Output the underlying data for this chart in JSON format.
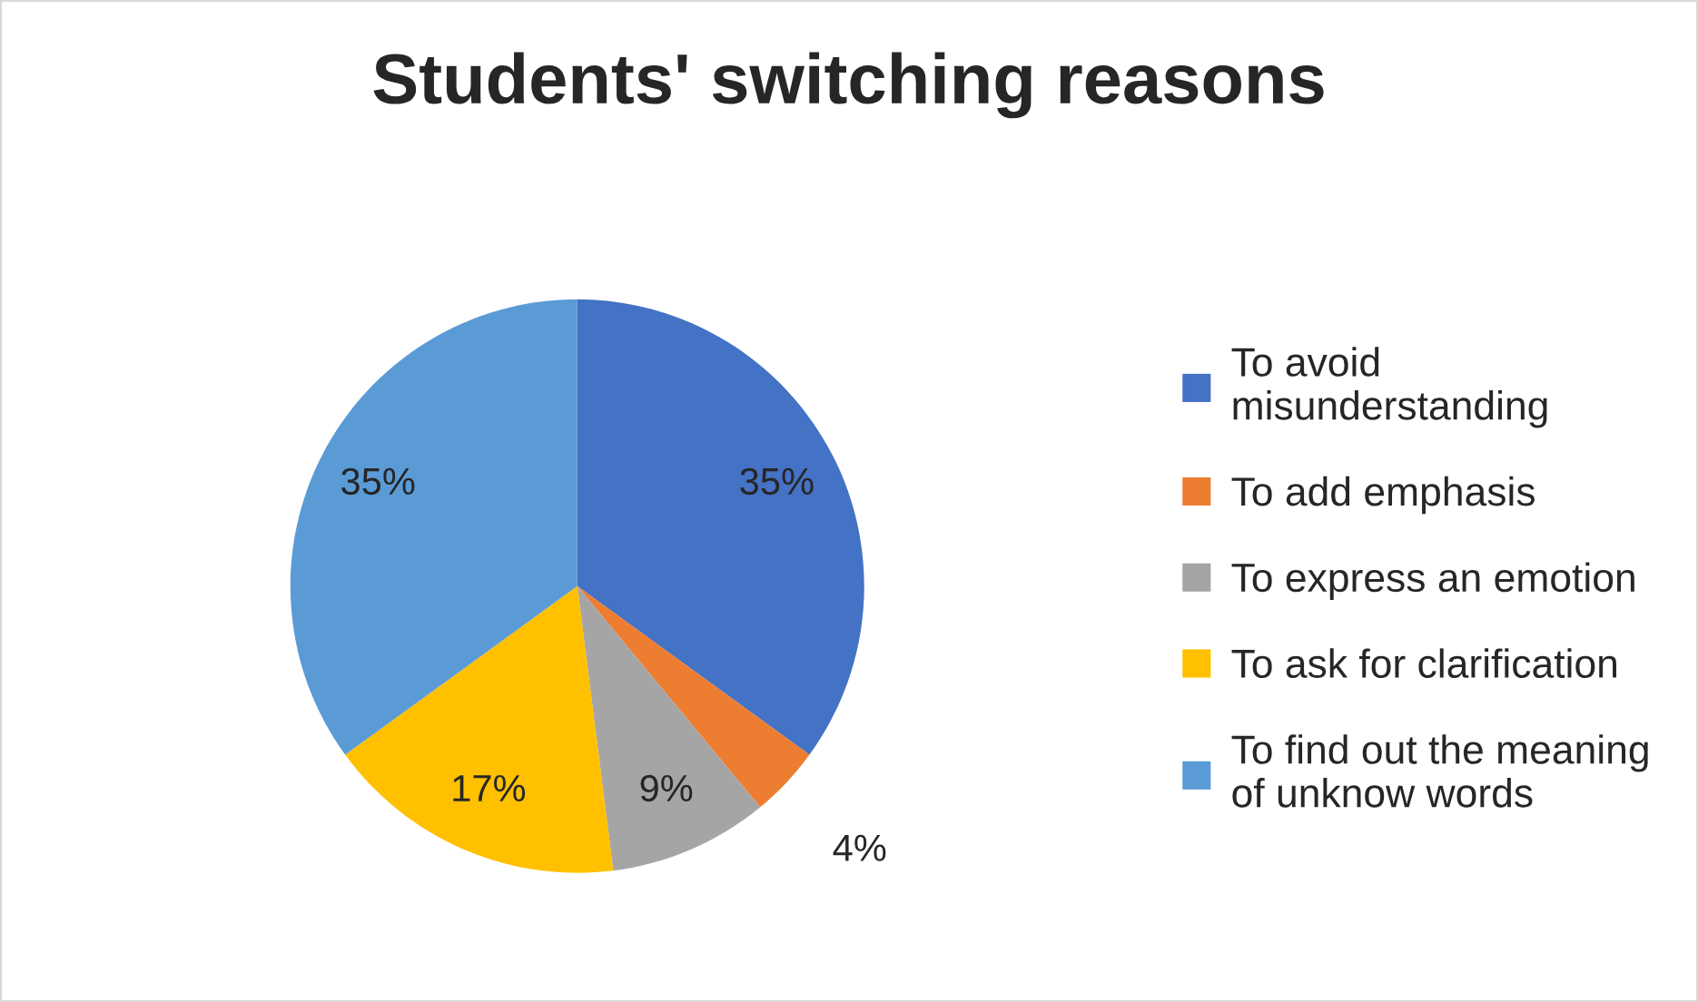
{
  "chart_data": {
    "type": "pie",
    "title": "Students' switching reasons",
    "categories": [
      "To avoid misunderstanding",
      "To add emphasis",
      "To express an emotion",
      "To ask for clarification",
      "To find out the meaning of unknow words"
    ],
    "values": [
      35,
      4,
      9,
      17,
      35
    ],
    "colors": [
      "#4472c4",
      "#ed7d31",
      "#a5a5a5",
      "#ffc000",
      "#5b9bd5"
    ],
    "value_labels": [
      "35%",
      "4%",
      "9%",
      "17%",
      "35%"
    ],
    "legend": "right"
  }
}
